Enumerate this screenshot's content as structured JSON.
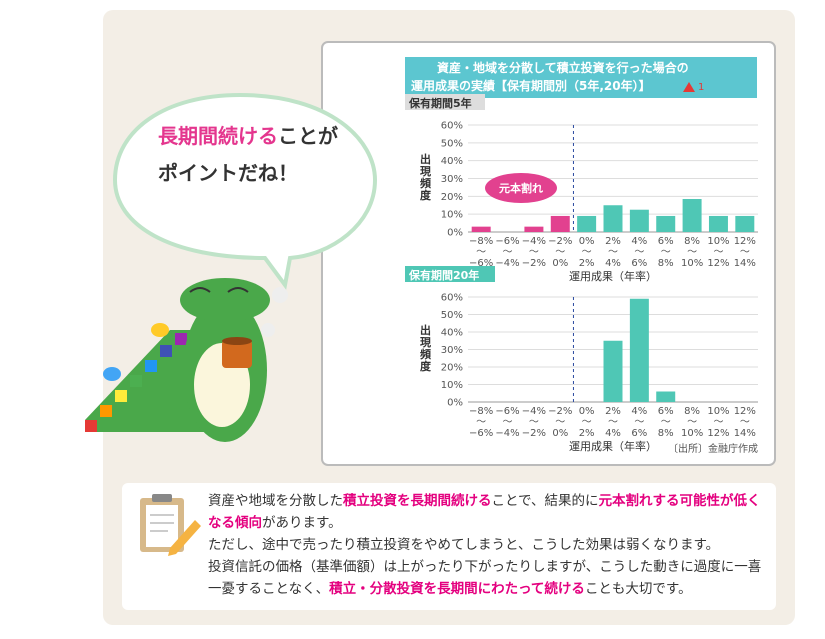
{
  "speech": {
    "lines": [
      [
        {
          "text": "長期間続ける",
          "color": "#e4368e"
        },
        {
          "text": "ことが",
          "color": "#333333"
        }
      ],
      [
        {
          "text": "ポイントだね！",
          "color": "#333333"
        }
      ]
    ]
  },
  "header": {
    "title": [
      "資産・地域を分散して積立投資を行った場合の",
      "運用成果の実績【保有期間別（5年,20年）】"
    ],
    "note_mark": "1"
  },
  "chart_data": [
    {
      "type": "bar",
      "title": "保有期間5年",
      "y_label": "出現頻度",
      "x_label": "運用成果（年率）",
      "annotation": "元本割れ",
      "categories": [
        "−8%\n～\n−6%",
        "−6%\n～\n−4%",
        "−4%\n～\n−2%",
        "−2%\n～\n0%",
        "0%\n～\n2%",
        "2%\n～\n4%",
        "4%\n～\n6%",
        "6%\n～\n8%",
        "8%\n～\n10%",
        "10%\n～\n12%",
        "12%\n～\n14%"
      ],
      "values": [
        3,
        0,
        3,
        9,
        9,
        15,
        12.5,
        9,
        18.5,
        9,
        9
      ],
      "colors": [
        "#e2418f",
        "#e2418f",
        "#e2418f",
        "#e2418f",
        "#4fc7b5",
        "#4fc7b5",
        "#4fc7b5",
        "#4fc7b5",
        "#4fc7b5",
        "#4fc7b5",
        "#4fc7b5"
      ],
      "ylim": [
        0,
        60
      ],
      "yticks": [
        {
          "value": 0,
          "label": "0%"
        },
        {
          "value": 10,
          "label": "10%"
        },
        {
          "value": 20,
          "label": "20%"
        },
        {
          "value": 30,
          "label": "30%"
        },
        {
          "value": 40,
          "label": "40%"
        },
        {
          "value": 50,
          "label": "50%"
        },
        {
          "value": 60,
          "label": "60%"
        }
      ],
      "grid": true
    },
    {
      "type": "bar",
      "title": "保有期間20年",
      "y_label": "出現頻度",
      "x_label": "運用成果（年率）",
      "categories": [
        "−8%\n～\n−6%",
        "−6%\n～\n−4%",
        "−4%\n～\n−2%",
        "−2%\n～\n0%",
        "0%\n～\n2%",
        "2%\n～\n4%",
        "4%\n～\n6%",
        "6%\n～\n8%",
        "8%\n～\n10%",
        "10%\n～\n12%",
        "12%\n～\n14%"
      ],
      "values": [
        0,
        0,
        0,
        0,
        0,
        35,
        59,
        6,
        0,
        0,
        0
      ],
      "colors": [
        "#e2418f",
        "#e2418f",
        "#e2418f",
        "#e2418f",
        "#4fc7b5",
        "#4fc7b5",
        "#4fc7b5",
        "#4fc7b5",
        "#4fc7b5",
        "#4fc7b5",
        "#4fc7b5"
      ],
      "ylim": [
        0,
        60
      ],
      "yticks": [
        {
          "value": 0,
          "label": "0%"
        },
        {
          "value": 10,
          "label": "10%"
        },
        {
          "value": 20,
          "label": "20%"
        },
        {
          "value": 30,
          "label": "30%"
        },
        {
          "value": 40,
          "label": "40%"
        },
        {
          "value": 50,
          "label": "50%"
        },
        {
          "value": 60,
          "label": "60%"
        }
      ],
      "grid": true
    }
  ],
  "source": "〔出所〕金融庁作成",
  "note": {
    "paragraphs": [
      [
        {
          "text": "資産や地域を分散した"
        },
        {
          "text": "積立投資を長期間続ける",
          "bold": true
        },
        {
          "text": "ことで、結果的に"
        },
        {
          "text": "元本割れする可能性が低くなる傾向",
          "bold": true
        },
        {
          "text": "があります。"
        }
      ],
      [
        {
          "text": "ただし、途中で売ったり積立投資をやめてしまうと、こうした効果は弱くなります。"
        }
      ],
      [
        {
          "text": "投資信託の価格（基準価額）は上がったり下がったりしますが、こうした動きに過度に一喜一憂することなく、"
        },
        {
          "text": "積立・分散投資を長期間にわたって続ける",
          "bold": true
        },
        {
          "text": "ことも大切です。"
        }
      ]
    ]
  }
}
